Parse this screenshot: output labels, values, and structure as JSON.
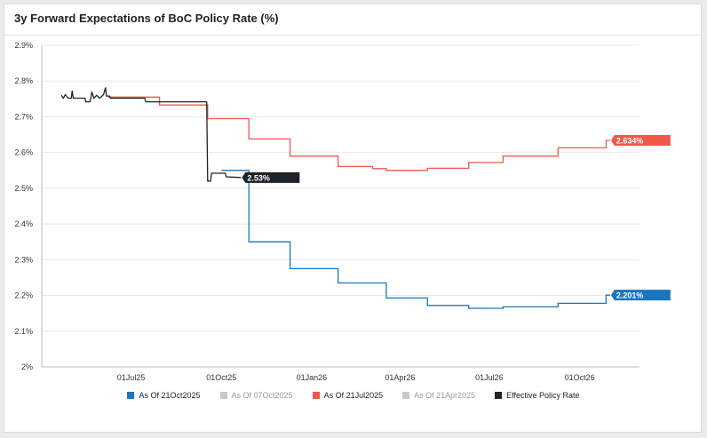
{
  "title": "3y Forward Expectations of BoC Policy Rate (%)",
  "colors": {
    "blue": "#1a75c0",
    "red": "#f0584b",
    "black": "#1d2328",
    "faded": "#c8c8c8"
  },
  "chart_data": {
    "type": "line",
    "title": "3y Forward Expectations of BoC Policy Rate (%)",
    "xlabel": "",
    "ylabel": "",
    "ylim": [
      2.0,
      2.9
    ],
    "y_ticks": [
      2.0,
      2.1,
      2.2,
      2.3,
      2.4,
      2.5,
      2.6,
      2.7,
      2.8,
      2.9
    ],
    "y_tick_labels": [
      "2%",
      "2.1%",
      "2.2%",
      "2.3%",
      "2.4%",
      "2.5%",
      "2.6%",
      "2.7%",
      "2.8%",
      "2.9%"
    ],
    "xlim": [
      "2025-04-01",
      "2026-12-01"
    ],
    "x_ticks": [
      "2025-07-01",
      "2025-10-01",
      "2026-01-01",
      "2026-04-01",
      "2026-07-01",
      "2026-10-01"
    ],
    "x_tick_labels": [
      "01Jul25",
      "01Oct25",
      "01Jan26",
      "01Apr26",
      "01Jul26",
      "01Oct26"
    ],
    "grid": "horizontal",
    "legend_position": "bottom",
    "series": [
      {
        "name": "As Of 21Oct2025",
        "color": "#1a75c0",
        "step": true,
        "visible": true,
        "end_label": "2.201%",
        "points": [
          [
            "2025-10-01",
            2.55
          ],
          [
            "2025-10-29",
            2.55
          ],
          [
            "2025-10-29",
            2.35
          ],
          [
            "2025-12-10",
            2.35
          ],
          [
            "2025-12-10",
            2.275
          ],
          [
            "2026-01-28",
            2.275
          ],
          [
            "2026-01-28",
            2.235
          ],
          [
            "2026-03-18",
            2.235
          ],
          [
            "2026-03-18",
            2.193
          ],
          [
            "2026-04-29",
            2.193
          ],
          [
            "2026-04-29",
            2.172
          ],
          [
            "2026-06-10",
            2.172
          ],
          [
            "2026-06-10",
            2.164
          ],
          [
            "2026-07-15",
            2.164
          ],
          [
            "2026-07-15",
            2.168
          ],
          [
            "2026-09-09",
            2.168
          ],
          [
            "2026-09-09",
            2.178
          ],
          [
            "2026-10-28",
            2.178
          ],
          [
            "2026-10-28",
            2.201
          ],
          [
            "2026-11-01",
            2.201
          ]
        ]
      },
      {
        "name": "As Of 07Oct2025",
        "color": "#c8c8c8",
        "step": true,
        "visible": false,
        "points": []
      },
      {
        "name": "As Of 21Jul2025",
        "color": "#f0584b",
        "step": true,
        "visible": true,
        "end_label": "2.634%",
        "points": [
          [
            "2025-06-08",
            2.755
          ],
          [
            "2025-07-30",
            2.755
          ],
          [
            "2025-07-30",
            2.733
          ],
          [
            "2025-09-17",
            2.733
          ],
          [
            "2025-09-17",
            2.695
          ],
          [
            "2025-10-29",
            2.695
          ],
          [
            "2025-10-29",
            2.638
          ],
          [
            "2025-12-10",
            2.638
          ],
          [
            "2025-12-10",
            2.59
          ],
          [
            "2026-01-28",
            2.59
          ],
          [
            "2026-01-28",
            2.561
          ],
          [
            "2026-03-04",
            2.561
          ],
          [
            "2026-03-04",
            2.555
          ],
          [
            "2026-03-18",
            2.555
          ],
          [
            "2026-03-18",
            2.55
          ],
          [
            "2026-04-29",
            2.55
          ],
          [
            "2026-04-29",
            2.556
          ],
          [
            "2026-06-10",
            2.556
          ],
          [
            "2026-06-10",
            2.572
          ],
          [
            "2026-07-15",
            2.572
          ],
          [
            "2026-07-15",
            2.59
          ],
          [
            "2026-09-09",
            2.59
          ],
          [
            "2026-09-09",
            2.613
          ],
          [
            "2026-10-28",
            2.613
          ],
          [
            "2026-10-28",
            2.634
          ],
          [
            "2026-11-01",
            2.634
          ]
        ]
      },
      {
        "name": "As Of 21Apr2025",
        "color": "#c8c8c8",
        "step": true,
        "visible": false,
        "points": []
      },
      {
        "name": "Effective Policy Rate",
        "color": "#1d2328",
        "step": false,
        "visible": true,
        "end_label": "2.53%",
        "points": [
          [
            "2025-04-21",
            2.76
          ],
          [
            "2025-04-23",
            2.752
          ],
          [
            "2025-04-25",
            2.762
          ],
          [
            "2025-04-28",
            2.752
          ],
          [
            "2025-05-01",
            2.752
          ],
          [
            "2025-05-02",
            2.773
          ],
          [
            "2025-05-03",
            2.752
          ],
          [
            "2025-05-15",
            2.752
          ],
          [
            "2025-05-16",
            2.742
          ],
          [
            "2025-05-20",
            2.742
          ],
          [
            "2025-05-21",
            2.752
          ],
          [
            "2025-05-22",
            2.77
          ],
          [
            "2025-05-24",
            2.752
          ],
          [
            "2025-05-27",
            2.76
          ],
          [
            "2025-05-30",
            2.752
          ],
          [
            "2025-06-03",
            2.762
          ],
          [
            "2025-06-05",
            2.782
          ],
          [
            "2025-06-06",
            2.758
          ],
          [
            "2025-06-09",
            2.758
          ],
          [
            "2025-06-10",
            2.752
          ],
          [
            "2025-07-15",
            2.752
          ],
          [
            "2025-07-16",
            2.742
          ],
          [
            "2025-09-16",
            2.742
          ],
          [
            "2025-09-17",
            2.52
          ],
          [
            "2025-09-20",
            2.52
          ],
          [
            "2025-09-21",
            2.542
          ],
          [
            "2025-10-05",
            2.542
          ],
          [
            "2025-10-06",
            2.532
          ],
          [
            "2025-10-21",
            2.53
          ]
        ]
      }
    ]
  },
  "legend": {
    "items": [
      {
        "label": "As Of 21Oct2025",
        "color": "#1a75c0",
        "faded": false
      },
      {
        "label": "As Of 07Oct2025",
        "color": "#c8c8c8",
        "faded": true
      },
      {
        "label": "As Of 21Jul2025",
        "color": "#f0584b",
        "faded": false
      },
      {
        "label": "As Of 21Apr2025",
        "color": "#c8c8c8",
        "faded": true
      },
      {
        "label": "Effective Policy Rate",
        "color": "#1d2328",
        "faded": false
      }
    ]
  }
}
